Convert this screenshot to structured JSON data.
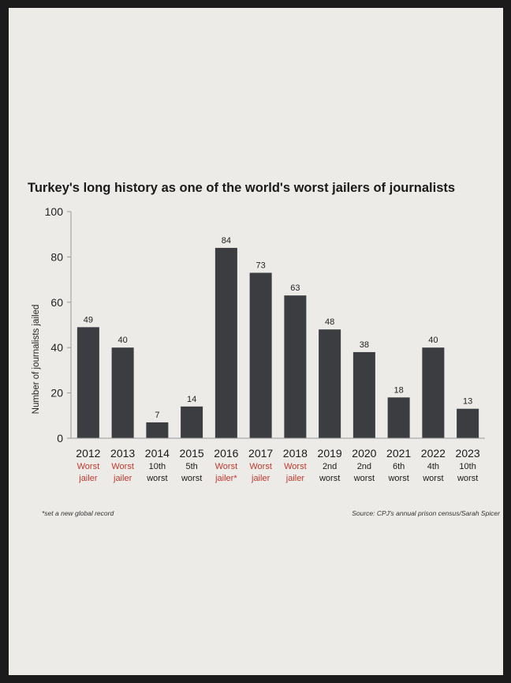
{
  "chart_data": {
    "type": "bar",
    "title": "Turkey's long history as one of the world's worst jailers of journalists",
    "xlabel": "",
    "ylabel": "Number of journalists jailed",
    "ylim": [
      0,
      100
    ],
    "yticks": [
      0,
      20,
      40,
      60,
      80,
      100
    ],
    "categories": [
      "2012",
      "2013",
      "2014",
      "2015",
      "2016",
      "2017",
      "2018",
      "2019",
      "2020",
      "2021",
      "2022",
      "2023"
    ],
    "values": [
      49,
      40,
      7,
      14,
      84,
      73,
      63,
      48,
      38,
      18,
      40,
      13
    ],
    "rankings": [
      [
        "Worst",
        "jailer"
      ],
      [
        "Worst",
        "jailer"
      ],
      [
        "10th",
        "worst"
      ],
      [
        "5th",
        "worst"
      ],
      [
        "Worst",
        "jailer*"
      ],
      [
        "Worst",
        "jailer"
      ],
      [
        "Worst",
        "jailer"
      ],
      [
        "2nd",
        "worst"
      ],
      [
        "2nd",
        "worst"
      ],
      [
        "6th",
        "worst"
      ],
      [
        "4th",
        "worst"
      ],
      [
        "10th",
        "worst"
      ]
    ],
    "highlight_worst": [
      true,
      true,
      false,
      false,
      true,
      true,
      true,
      false,
      false,
      false,
      false,
      false
    ],
    "grid": false,
    "legend": "none",
    "footnote": "*set a new global record",
    "source": "Source: CPJ's annual prison census/Sarah Spicer"
  },
  "colors": {
    "bar": "#3b3d40",
    "highlight_text": "#c0392b",
    "text": "#1a1a1a",
    "axis": "#9a9a9a",
    "background": "#ecebe8",
    "frame": "#1b1b1b"
  }
}
